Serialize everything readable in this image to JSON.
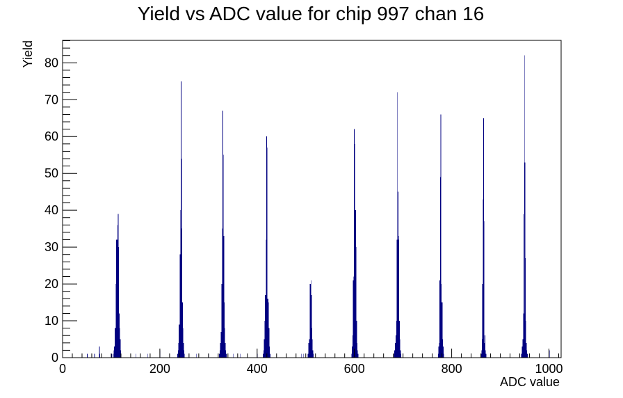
{
  "chart_data": {
    "type": "bar",
    "title": "Yield vs ADC value for chip 997 chan 16",
    "xlabel": "ADC value",
    "ylabel": "Yield",
    "xlim": [
      0,
      1025
    ],
    "ylim": [
      0,
      86.1
    ],
    "x_ticks": [
      0,
      200,
      400,
      600,
      800,
      1000
    ],
    "y_ticks": [
      0,
      10,
      20,
      30,
      40,
      50,
      60,
      70,
      80
    ],
    "grid": false,
    "legend": "none",
    "bar_color": "#000080",
    "bins": [
      {
        "x": 50,
        "y": 1
      },
      {
        "x": 65,
        "y": 1
      },
      {
        "x": 75,
        "y": 3
      },
      {
        "x": 76,
        "y": 1
      },
      {
        "x": 100,
        "y": 1
      },
      {
        "x": 103,
        "y": 1
      },
      {
        "x": 104,
        "y": 2
      },
      {
        "x": 106,
        "y": 3
      },
      {
        "x": 107,
        "y": 8
      },
      {
        "x": 108,
        "y": 8
      },
      {
        "x": 109,
        "y": 20
      },
      {
        "x": 110,
        "y": 32
      },
      {
        "x": 111,
        "y": 32
      },
      {
        "x": 112,
        "y": 32
      },
      {
        "x": 113,
        "y": 36
      },
      {
        "x": 114,
        "y": 39
      },
      {
        "x": 115,
        "y": 30
      },
      {
        "x": 116,
        "y": 12
      },
      {
        "x": 117,
        "y": 8
      },
      {
        "x": 118,
        "y": 5
      },
      {
        "x": 119,
        "y": 2
      },
      {
        "x": 120,
        "y": 1
      },
      {
        "x": 150,
        "y": 1
      },
      {
        "x": 175,
        "y": 1
      },
      {
        "x": 200,
        "y": 2
      },
      {
        "x": 236,
        "y": 1
      },
      {
        "x": 237,
        "y": 2
      },
      {
        "x": 238,
        "y": 4
      },
      {
        "x": 239,
        "y": 9
      },
      {
        "x": 240,
        "y": 9
      },
      {
        "x": 241,
        "y": 28
      },
      {
        "x": 242,
        "y": 40
      },
      {
        "x": 243,
        "y": 75
      },
      {
        "x": 244,
        "y": 54
      },
      {
        "x": 245,
        "y": 35
      },
      {
        "x": 246,
        "y": 15
      },
      {
        "x": 247,
        "y": 8
      },
      {
        "x": 248,
        "y": 4
      },
      {
        "x": 249,
        "y": 2
      },
      {
        "x": 250,
        "y": 1
      },
      {
        "x": 275,
        "y": 1
      },
      {
        "x": 300,
        "y": 1
      },
      {
        "x": 322,
        "y": 1
      },
      {
        "x": 323,
        "y": 2
      },
      {
        "x": 324,
        "y": 4
      },
      {
        "x": 325,
        "y": 7
      },
      {
        "x": 326,
        "y": 7
      },
      {
        "x": 327,
        "y": 20
      },
      {
        "x": 328,
        "y": 35
      },
      {
        "x": 329,
        "y": 67
      },
      {
        "x": 330,
        "y": 55
      },
      {
        "x": 331,
        "y": 33
      },
      {
        "x": 332,
        "y": 15
      },
      {
        "x": 333,
        "y": 8
      },
      {
        "x": 334,
        "y": 4
      },
      {
        "x": 335,
        "y": 2
      },
      {
        "x": 336,
        "y": 1
      },
      {
        "x": 350,
        "y": 1
      },
      {
        "x": 365,
        "y": 1
      },
      {
        "x": 400,
        "y": 1
      },
      {
        "x": 412,
        "y": 1
      },
      {
        "x": 413,
        "y": 2
      },
      {
        "x": 414,
        "y": 5
      },
      {
        "x": 415,
        "y": 10
      },
      {
        "x": 416,
        "y": 17
      },
      {
        "x": 417,
        "y": 17
      },
      {
        "x": 418,
        "y": 32
      },
      {
        "x": 419,
        "y": 60
      },
      {
        "x": 420,
        "y": 57
      },
      {
        "x": 421,
        "y": 16
      },
      {
        "x": 422,
        "y": 16
      },
      {
        "x": 423,
        "y": 15
      },
      {
        "x": 424,
        "y": 8
      },
      {
        "x": 425,
        "y": 3
      },
      {
        "x": 426,
        "y": 1
      },
      {
        "x": 490,
        "y": 1
      },
      {
        "x": 495,
        "y": 1
      },
      {
        "x": 504,
        "y": 1
      },
      {
        "x": 505,
        "y": 4
      },
      {
        "x": 506,
        "y": 4
      },
      {
        "x": 507,
        "y": 5
      },
      {
        "x": 508,
        "y": 20
      },
      {
        "x": 509,
        "y": 20
      },
      {
        "x": 510,
        "y": 21
      },
      {
        "x": 511,
        "y": 17
      },
      {
        "x": 512,
        "y": 8
      },
      {
        "x": 513,
        "y": 5
      },
      {
        "x": 514,
        "y": 2
      },
      {
        "x": 515,
        "y": 1
      },
      {
        "x": 594,
        "y": 1
      },
      {
        "x": 595,
        "y": 3
      },
      {
        "x": 596,
        "y": 6
      },
      {
        "x": 597,
        "y": 21
      },
      {
        "x": 598,
        "y": 22
      },
      {
        "x": 599,
        "y": 62
      },
      {
        "x": 600,
        "y": 58
      },
      {
        "x": 601,
        "y": 40
      },
      {
        "x": 602,
        "y": 40
      },
      {
        "x": 603,
        "y": 30
      },
      {
        "x": 604,
        "y": 10
      },
      {
        "x": 605,
        "y": 4
      },
      {
        "x": 606,
        "y": 2
      },
      {
        "x": 607,
        "y": 1
      },
      {
        "x": 681,
        "y": 1
      },
      {
        "x": 682,
        "y": 2
      },
      {
        "x": 683,
        "y": 4
      },
      {
        "x": 684,
        "y": 4
      },
      {
        "x": 685,
        "y": 6
      },
      {
        "x": 686,
        "y": 10
      },
      {
        "x": 687,
        "y": 32
      },
      {
        "x": 688,
        "y": 72
      },
      {
        "x": 689,
        "y": 45
      },
      {
        "x": 690,
        "y": 33
      },
      {
        "x": 691,
        "y": 32
      },
      {
        "x": 692,
        "y": 10
      },
      {
        "x": 693,
        "y": 5
      },
      {
        "x": 694,
        "y": 2
      },
      {
        "x": 695,
        "y": 1
      },
      {
        "x": 772,
        "y": 1
      },
      {
        "x": 773,
        "y": 3
      },
      {
        "x": 774,
        "y": 4
      },
      {
        "x": 775,
        "y": 21
      },
      {
        "x": 776,
        "y": 49
      },
      {
        "x": 777,
        "y": 66
      },
      {
        "x": 778,
        "y": 20
      },
      {
        "x": 779,
        "y": 15
      },
      {
        "x": 780,
        "y": 15
      },
      {
        "x": 781,
        "y": 5
      },
      {
        "x": 782,
        "y": 3
      },
      {
        "x": 783,
        "y": 1
      },
      {
        "x": 860,
        "y": 1
      },
      {
        "x": 861,
        "y": 2
      },
      {
        "x": 862,
        "y": 5
      },
      {
        "x": 863,
        "y": 20
      },
      {
        "x": 864,
        "y": 43
      },
      {
        "x": 865,
        "y": 65
      },
      {
        "x": 866,
        "y": 37
      },
      {
        "x": 867,
        "y": 4
      },
      {
        "x": 868,
        "y": 6
      },
      {
        "x": 869,
        "y": 2
      },
      {
        "x": 870,
        "y": 1
      },
      {
        "x": 943,
        "y": 1
      },
      {
        "x": 944,
        "y": 3
      },
      {
        "x": 945,
        "y": 3
      },
      {
        "x": 946,
        "y": 5
      },
      {
        "x": 947,
        "y": 39
      },
      {
        "x": 948,
        "y": 12
      },
      {
        "x": 949,
        "y": 82
      },
      {
        "x": 950,
        "y": 53
      },
      {
        "x": 951,
        "y": 27
      },
      {
        "x": 952,
        "y": 10
      },
      {
        "x": 953,
        "y": 4
      },
      {
        "x": 954,
        "y": 2
      },
      {
        "x": 955,
        "y": 1
      },
      {
        "x": 1000,
        "y": 2
      }
    ]
  }
}
